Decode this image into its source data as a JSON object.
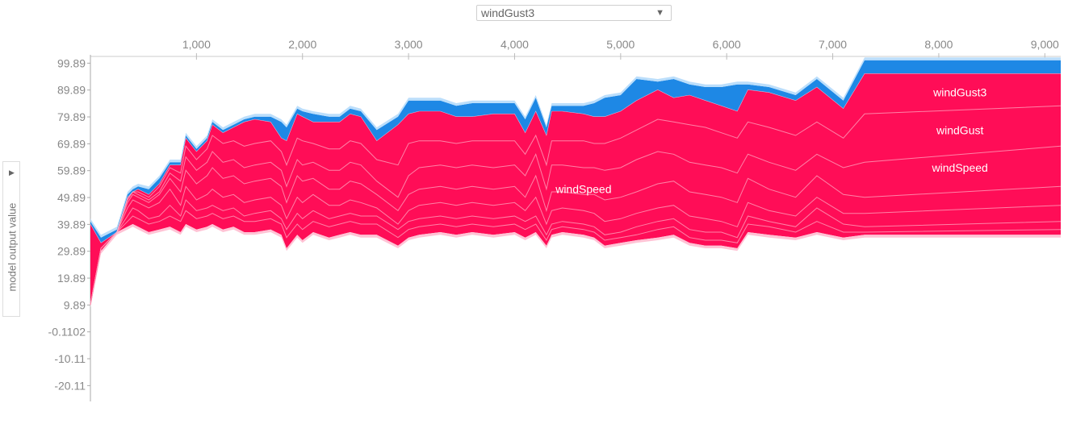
{
  "select": {
    "value": "windGust3"
  },
  "yaxis_button": {
    "label": "model output value"
  },
  "chart_data": {
    "type": "area",
    "x_ticks": [
      1000,
      2000,
      3000,
      4000,
      5000,
      6000,
      7000,
      8000,
      9000
    ],
    "x_tick_labels": [
      "1,000",
      "2,000",
      "3,000",
      "4,000",
      "5,000",
      "6,000",
      "7,000",
      "8,000",
      "9,000"
    ],
    "x_range": [
      0,
      9150
    ],
    "y_ticks": [
      99.89,
      89.89,
      79.89,
      69.89,
      59.89,
      49.89,
      39.89,
      29.89,
      19.89,
      9.89,
      -0.1102,
      -10.11,
      -20.11
    ],
    "y_tick_labels": [
      "99.89",
      "89.89",
      "79.89",
      "69.89",
      "59.89",
      "49.89",
      "39.89",
      "29.89",
      "19.89",
      "9.89",
      "-0.1102",
      "-10.11",
      "-20.11"
    ],
    "y_range": [
      -26,
      106
    ],
    "colors": {
      "positive": "#ff0d57",
      "negative": "#1e88e5",
      "positive_light": "#ffc3d5",
      "negative_light": "#bbdefb"
    },
    "x": [
      0,
      100,
      250,
      350,
      400,
      450,
      550,
      650,
      750,
      850,
      900,
      1000,
      1100,
      1150,
      1250,
      1350,
      1450,
      1550,
      1700,
      1800,
      1850,
      1950,
      2000,
      2100,
      2250,
      2350,
      2450,
      2550,
      2700,
      2900,
      3000,
      3100,
      3300,
      3450,
      3600,
      3800,
      4000,
      4100,
      4200,
      4300,
      4350,
      4450,
      4650,
      4750,
      4850,
      5000,
      5150,
      5350,
      5500,
      5650,
      5800,
      5950,
      6100,
      6200,
      6400,
      6650,
      6850,
      7100,
      7300,
      9150
    ],
    "base": [
      10,
      30,
      37,
      39,
      40,
      39,
      37,
      38,
      39,
      37,
      40,
      38,
      39,
      40,
      38,
      39,
      37,
      37,
      38,
      36,
      31,
      36,
      34,
      37,
      35,
      36,
      37,
      36,
      36,
      32,
      35,
      36,
      37,
      36,
      37,
      36,
      37,
      35,
      37,
      32,
      36,
      37,
      36,
      35,
      32,
      33,
      34,
      35,
      36,
      33,
      32,
      32,
      31,
      37,
      36,
      35,
      37,
      35,
      36,
      36
    ],
    "top": [
      40,
      33,
      37,
      50,
      52,
      53,
      51,
      55,
      62,
      62,
      72,
      67,
      71,
      77,
      74,
      76,
      78,
      79,
      78,
      72,
      71,
      81,
      80,
      78,
      78,
      78,
      81,
      80,
      71,
      77,
      81,
      82,
      82,
      80,
      80,
      81,
      81,
      74,
      82,
      73,
      82,
      82,
      81,
      80,
      80,
      82,
      86,
      90,
      87,
      88,
      86,
      84,
      82,
      90,
      89,
      86,
      91,
      83,
      96,
      96
    ],
    "neg_top": [
      41,
      35,
      38,
      51,
      53,
      54,
      53,
      57,
      63,
      63,
      73,
      68,
      72,
      78,
      75,
      77,
      79,
      80,
      80,
      78,
      76,
      83,
      82,
      81,
      80,
      80,
      83,
      82,
      75,
      80,
      86,
      86,
      86,
      84,
      85,
      85,
      85,
      79,
      87,
      76,
      84,
      84,
      84,
      85,
      87,
      88,
      94,
      93,
      94,
      92,
      91,
      91,
      92,
      92,
      91,
      88,
      94,
      86,
      101,
      101
    ],
    "lines": [
      [
        10,
        31,
        37,
        41,
        43,
        42,
        40,
        41,
        43,
        41,
        45,
        42,
        43,
        44,
        42,
        43,
        41,
        41,
        42,
        40,
        35,
        40,
        38,
        41,
        39,
        40,
        41,
        40,
        40,
        35,
        38,
        39,
        40,
        39,
        40,
        39,
        40,
        38,
        40,
        34,
        38,
        39,
        38,
        37,
        34,
        35,
        36,
        38,
        39,
        35,
        34,
        34,
        33,
        40,
        39,
        37,
        41,
        37,
        37,
        38
      ],
      [
        10,
        31,
        37,
        43,
        46,
        45,
        42,
        43,
        47,
        43,
        49,
        45,
        46,
        47,
        45,
        46,
        43,
        44,
        45,
        42,
        38,
        44,
        42,
        45,
        42,
        43,
        44,
        43,
        43,
        38,
        41,
        42,
        43,
        42,
        43,
        42,
        43,
        41,
        43,
        36,
        40,
        41,
        40,
        39,
        36,
        37,
        39,
        41,
        42,
        38,
        37,
        37,
        35,
        43,
        41,
        39,
        46,
        40,
        39,
        41
      ],
      [
        10,
        31,
        37,
        46,
        49,
        48,
        46,
        48,
        53,
        47,
        54,
        49,
        51,
        53,
        50,
        51,
        48,
        49,
        50,
        47,
        42,
        50,
        48,
        51,
        47,
        47,
        49,
        48,
        46,
        40,
        45,
        47,
        48,
        47,
        48,
        47,
        48,
        45,
        50,
        40,
        45,
        46,
        45,
        44,
        41,
        42,
        44,
        46,
        47,
        43,
        42,
        41,
        39,
        48,
        45,
        43,
        50,
        44,
        44,
        47
      ],
      [
        10,
        31,
        37,
        48,
        51,
        50,
        48,
        51,
        57,
        52,
        60,
        55,
        58,
        61,
        57,
        58,
        55,
        56,
        57,
        54,
        48,
        58,
        56,
        57,
        53,
        53,
        56,
        55,
        51,
        45,
        51,
        53,
        54,
        53,
        54,
        53,
        54,
        50,
        58,
        45,
        52,
        52,
        51,
        51,
        49,
        50,
        52,
        55,
        56,
        52,
        51,
        50,
        48,
        57,
        53,
        50,
        58,
        51,
        50,
        54
      ],
      [
        10,
        31,
        37,
        49,
        52,
        51,
        49,
        52,
        59,
        56,
        65,
        60,
        63,
        67,
        63,
        64,
        61,
        62,
        63,
        60,
        54,
        64,
        62,
        63,
        60,
        60,
        63,
        62,
        56,
        50,
        58,
        61,
        62,
        61,
        62,
        61,
        62,
        58,
        66,
        53,
        62,
        62,
        61,
        61,
        60,
        61,
        64,
        67,
        66,
        63,
        62,
        61,
        59,
        66,
        63,
        60,
        66,
        61,
        63,
        69
      ],
      [
        10,
        31,
        37,
        49.5,
        52,
        52,
        50,
        54,
        61,
        59,
        69,
        64,
        68,
        73,
        70,
        71,
        69,
        70,
        71,
        67,
        62,
        72,
        71,
        70,
        68,
        68,
        71,
        70,
        64,
        62,
        70,
        71,
        71,
        70,
        71,
        71,
        71,
        66,
        73,
        62,
        71,
        71,
        71,
        70,
        70,
        72,
        75,
        79,
        78,
        77,
        76,
        74,
        72,
        78,
        76,
        73,
        78,
        72,
        81,
        84
      ]
    ],
    "annotations": [
      {
        "text": "windGust3",
        "x": 8200,
        "y": 89
      },
      {
        "text": "windGust",
        "x": 8200,
        "y": 75
      },
      {
        "text": "windSpeed",
        "x": 8200,
        "y": 61
      },
      {
        "text": "windSpeed",
        "x": 4650,
        "y": 53
      }
    ]
  }
}
